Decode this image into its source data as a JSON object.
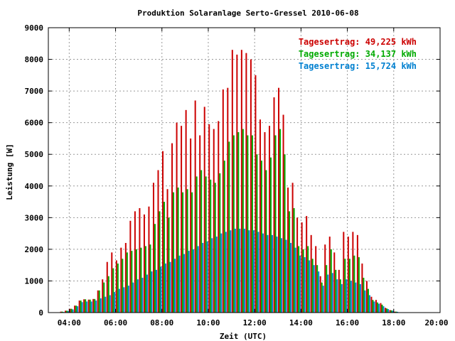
{
  "chart_data": {
    "type": "bar",
    "title": "Produktion Solaranlage Serto-Gressel 2010-06-08",
    "xlabel": "Zeit (UTC)",
    "ylabel": "Leistung [W]",
    "xlim": [
      3.1,
      20.0
    ],
    "ylim": [
      0,
      9000
    ],
    "x_ticks": [
      "04:00",
      "06:00",
      "08:00",
      "10:00",
      "12:00",
      "14:00",
      "16:00",
      "18:00",
      "20:00"
    ],
    "x_tick_values": [
      4,
      6,
      8,
      10,
      12,
      14,
      16,
      18,
      20
    ],
    "y_ticks": [
      0,
      1000,
      2000,
      3000,
      4000,
      5000,
      6000,
      7000,
      8000,
      9000
    ],
    "grid": true,
    "legend_position": "top-right",
    "legend": [
      {
        "text": "Tagesertrag: 49,225 kWh",
        "color": "#cc0000"
      },
      {
        "text": "Tagesertrag: 34,137 kWh",
        "color": "#00aa00"
      },
      {
        "text": "Tagesertrag: 15,724 kWh",
        "color": "#0080d0"
      }
    ],
    "interval_hours": 0.0833,
    "series": [
      {
        "name": "Tagesertrag: 49,225 kWh",
        "color": "#cc0000",
        "points": [
          [
            3.7,
            30
          ],
          [
            3.9,
            60
          ],
          [
            4.1,
            120
          ],
          [
            4.3,
            220
          ],
          [
            4.5,
            380
          ],
          [
            4.7,
            420
          ],
          [
            4.9,
            410
          ],
          [
            5.1,
            430
          ],
          [
            5.3,
            700
          ],
          [
            5.5,
            1050
          ],
          [
            5.7,
            1600
          ],
          [
            5.9,
            1900
          ],
          [
            6.1,
            1650
          ],
          [
            6.3,
            2050
          ],
          [
            6.5,
            2200
          ],
          [
            6.7,
            2900
          ],
          [
            6.9,
            3200
          ],
          [
            7.1,
            3300
          ],
          [
            7.3,
            3100
          ],
          [
            7.5,
            3350
          ],
          [
            7.7,
            4100
          ],
          [
            7.9,
            4500
          ],
          [
            8.1,
            5100
          ],
          [
            8.3,
            3900
          ],
          [
            8.5,
            5350
          ],
          [
            8.7,
            6000
          ],
          [
            8.9,
            5900
          ],
          [
            9.1,
            6400
          ],
          [
            9.3,
            5500
          ],
          [
            9.5,
            6700
          ],
          [
            9.7,
            5600
          ],
          [
            9.9,
            6500
          ],
          [
            10.1,
            5950
          ],
          [
            10.3,
            5800
          ],
          [
            10.5,
            6050
          ],
          [
            10.7,
            7050
          ],
          [
            10.9,
            7100
          ],
          [
            11.1,
            8300
          ],
          [
            11.3,
            8150
          ],
          [
            11.5,
            8300
          ],
          [
            11.7,
            8200
          ],
          [
            11.9,
            8000
          ],
          [
            12.1,
            7500
          ],
          [
            12.3,
            6100
          ],
          [
            12.5,
            5700
          ],
          [
            12.7,
            5900
          ],
          [
            12.9,
            6800
          ],
          [
            13.1,
            7100
          ],
          [
            13.3,
            6250
          ],
          [
            13.5,
            3950
          ],
          [
            13.7,
            4100
          ],
          [
            13.9,
            3000
          ],
          [
            14.1,
            2850
          ],
          [
            14.3,
            3050
          ],
          [
            14.5,
            2450
          ],
          [
            14.7,
            2100
          ],
          [
            14.9,
            1150
          ],
          [
            15.1,
            2150
          ],
          [
            15.3,
            2400
          ],
          [
            15.5,
            1900
          ],
          [
            15.7,
            1350
          ],
          [
            15.9,
            2550
          ],
          [
            16.1,
            2400
          ],
          [
            16.3,
            2550
          ],
          [
            16.5,
            2450
          ],
          [
            16.7,
            1550
          ],
          [
            16.9,
            1000
          ],
          [
            17.1,
            500
          ],
          [
            17.3,
            400
          ],
          [
            17.5,
            300
          ],
          [
            17.7,
            150
          ],
          [
            17.9,
            80
          ],
          [
            18.1,
            30
          ]
        ]
      },
      {
        "name": "Tagesertrag: 34,137 kWh",
        "color": "#00aa00",
        "points": [
          [
            3.7,
            30
          ],
          [
            3.9,
            60
          ],
          [
            4.1,
            120
          ],
          [
            4.3,
            220
          ],
          [
            4.5,
            380
          ],
          [
            4.7,
            420
          ],
          [
            4.9,
            410
          ],
          [
            5.1,
            430
          ],
          [
            5.3,
            700
          ],
          [
            5.5,
            950
          ],
          [
            5.7,
            1150
          ],
          [
            5.9,
            1400
          ],
          [
            6.1,
            1550
          ],
          [
            6.3,
            1700
          ],
          [
            6.5,
            1900
          ],
          [
            6.7,
            1950
          ],
          [
            6.9,
            2000
          ],
          [
            7.1,
            2050
          ],
          [
            7.3,
            2100
          ],
          [
            7.5,
            2150
          ],
          [
            7.7,
            2800
          ],
          [
            7.9,
            3200
          ],
          [
            8.1,
            3500
          ],
          [
            8.3,
            3000
          ],
          [
            8.5,
            3800
          ],
          [
            8.7,
            3950
          ],
          [
            8.9,
            3800
          ],
          [
            9.1,
            3900
          ],
          [
            9.3,
            3800
          ],
          [
            9.5,
            4300
          ],
          [
            9.7,
            4500
          ],
          [
            9.9,
            4300
          ],
          [
            10.1,
            4200
          ],
          [
            10.3,
            4100
          ],
          [
            10.5,
            4400
          ],
          [
            10.7,
            4800
          ],
          [
            10.9,
            5400
          ],
          [
            11.1,
            5600
          ],
          [
            11.3,
            5700
          ],
          [
            11.5,
            5800
          ],
          [
            11.7,
            5600
          ],
          [
            11.9,
            5600
          ],
          [
            12.1,
            5000
          ],
          [
            12.3,
            4800
          ],
          [
            12.5,
            4500
          ],
          [
            12.7,
            4900
          ],
          [
            12.9,
            5600
          ],
          [
            13.1,
            5800
          ],
          [
            13.3,
            5000
          ],
          [
            13.5,
            3200
          ],
          [
            13.7,
            3300
          ],
          [
            13.9,
            2100
          ],
          [
            14.1,
            2000
          ],
          [
            14.3,
            2100
          ],
          [
            14.5,
            1700
          ],
          [
            14.7,
            1500
          ],
          [
            14.9,
            950
          ],
          [
            15.1,
            1500
          ],
          [
            15.3,
            2000
          ],
          [
            15.5,
            1350
          ],
          [
            15.7,
            1050
          ],
          [
            15.9,
            1700
          ],
          [
            16.1,
            1700
          ],
          [
            16.3,
            1800
          ],
          [
            16.5,
            1750
          ],
          [
            16.7,
            1100
          ],
          [
            16.9,
            750
          ],
          [
            17.1,
            400
          ],
          [
            17.3,
            320
          ],
          [
            17.5,
            250
          ],
          [
            17.7,
            130
          ],
          [
            17.9,
            70
          ],
          [
            18.1,
            30
          ]
        ]
      },
      {
        "name": "Tagesertrag: 15,724 kWh",
        "color": "#0080d0",
        "points": [
          [
            3.7,
            20
          ],
          [
            3.9,
            50
          ],
          [
            4.1,
            100
          ],
          [
            4.3,
            200
          ],
          [
            4.5,
            330
          ],
          [
            4.7,
            350
          ],
          [
            4.9,
            350
          ],
          [
            5.1,
            380
          ],
          [
            5.3,
            450
          ],
          [
            5.5,
            500
          ],
          [
            5.7,
            550
          ],
          [
            5.9,
            650
          ],
          [
            6.1,
            750
          ],
          [
            6.3,
            800
          ],
          [
            6.5,
            850
          ],
          [
            6.7,
            950
          ],
          [
            6.9,
            1050
          ],
          [
            7.1,
            1100
          ],
          [
            7.3,
            1200
          ],
          [
            7.5,
            1300
          ],
          [
            7.7,
            1350
          ],
          [
            7.9,
            1450
          ],
          [
            8.1,
            1550
          ],
          [
            8.3,
            1600
          ],
          [
            8.5,
            1700
          ],
          [
            8.7,
            1800
          ],
          [
            8.9,
            1850
          ],
          [
            9.1,
            1950
          ],
          [
            9.3,
            2000
          ],
          [
            9.5,
            2100
          ],
          [
            9.7,
            2200
          ],
          [
            9.9,
            2250
          ],
          [
            10.1,
            2350
          ],
          [
            10.3,
            2400
          ],
          [
            10.5,
            2500
          ],
          [
            10.7,
            2550
          ],
          [
            10.9,
            2600
          ],
          [
            11.1,
            2650
          ],
          [
            11.3,
            2650
          ],
          [
            11.5,
            2650
          ],
          [
            11.7,
            2600
          ],
          [
            11.9,
            2600
          ],
          [
            12.1,
            2550
          ],
          [
            12.3,
            2500
          ],
          [
            12.5,
            2450
          ],
          [
            12.7,
            2450
          ],
          [
            12.9,
            2400
          ],
          [
            13.1,
            2350
          ],
          [
            13.3,
            2300
          ],
          [
            13.5,
            2200
          ],
          [
            13.7,
            2050
          ],
          [
            13.9,
            1800
          ],
          [
            14.1,
            1750
          ],
          [
            14.3,
            1650
          ],
          [
            14.5,
            1500
          ],
          [
            14.7,
            1300
          ],
          [
            14.9,
            850
          ],
          [
            15.1,
            1200
          ],
          [
            15.3,
            1250
          ],
          [
            15.5,
            1050
          ],
          [
            15.7,
            900
          ],
          [
            15.9,
            1050
          ],
          [
            16.1,
            1000
          ],
          [
            16.3,
            950
          ],
          [
            16.5,
            900
          ],
          [
            16.7,
            700
          ],
          [
            16.9,
            550
          ],
          [
            17.1,
            350
          ],
          [
            17.3,
            280
          ],
          [
            17.5,
            200
          ],
          [
            17.7,
            110
          ],
          [
            17.9,
            60
          ],
          [
            18.1,
            25
          ]
        ]
      }
    ]
  }
}
